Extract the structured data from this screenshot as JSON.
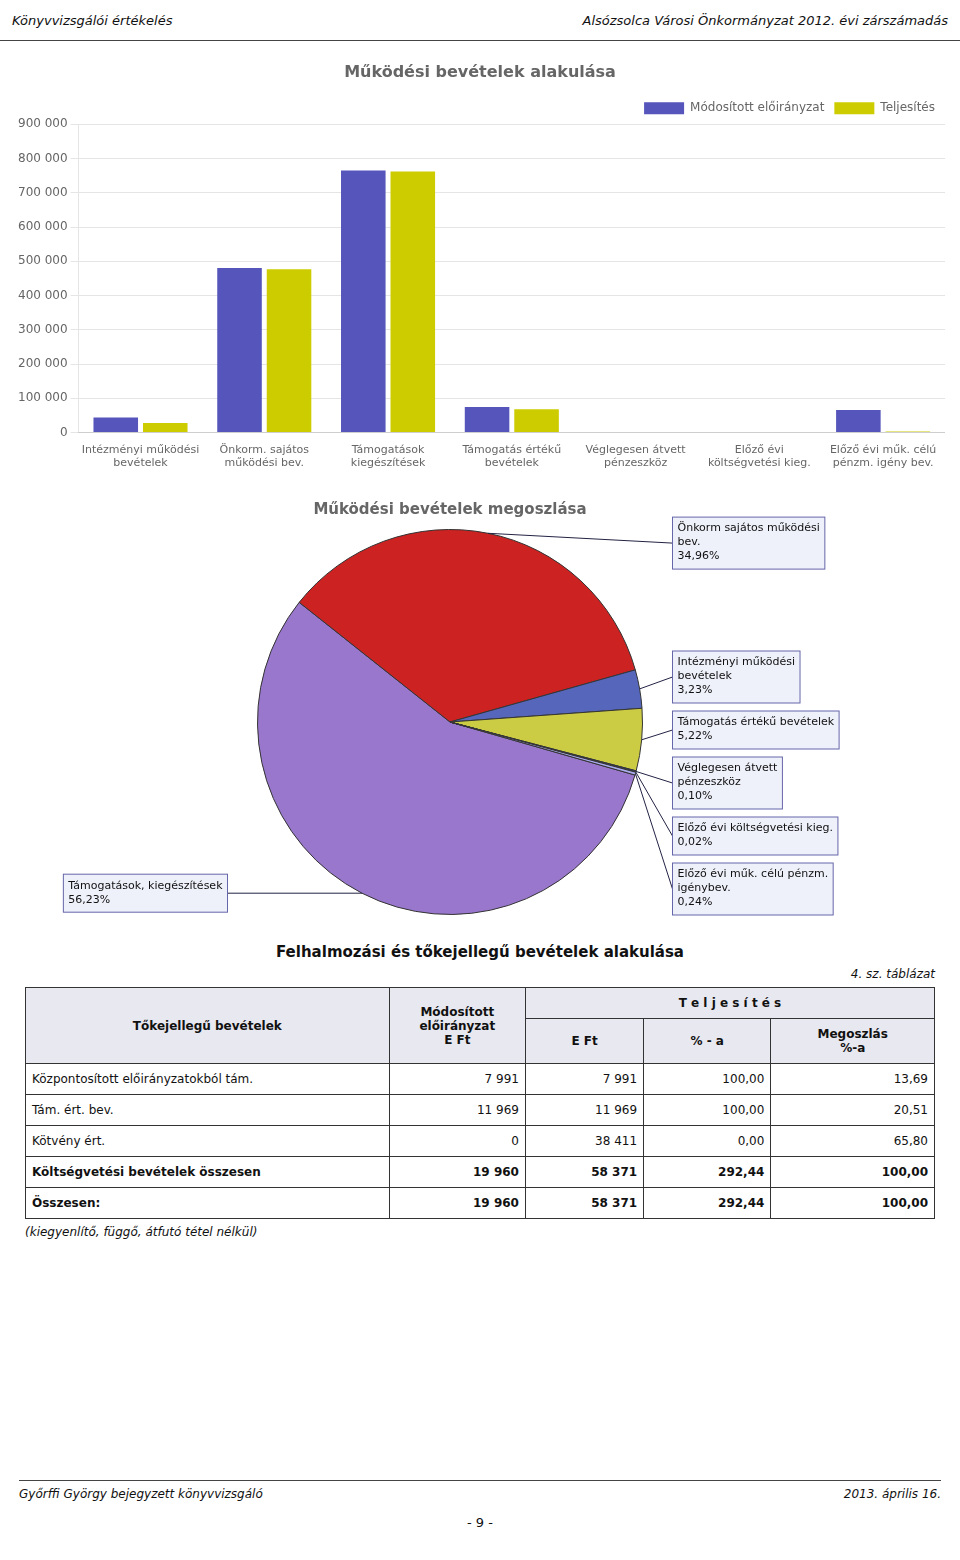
{
  "annotations": [
    "Könyvvizsgálói értékelés",
    "Alsózsolca Városi Önkormányzat 2012. évi zárszámadás",
    "Győrffi György bejegyzett könyvvizsgáló",
    "2013. április 16.",
    "- 9 -"
  ],
  "chart_data": [
    {
      "type": "bar",
      "title": "Működési bevételek alakulása",
      "categories": [
        "Intézményi működési\nbevételek",
        "Önkorm. sajátos\nműködési bev.",
        "Támogatások\nkiegészítések",
        "Támogatás értékű\nbevételek",
        "Véglegesen átvett\npénzeszköz",
        "Előző évi\nköltségvetési kieg.",
        "Előző évi műk. célú\npénzm. igény bev."
      ],
      "series": [
        {
          "name": "Módosított előirányzat",
          "color": "#5555bb",
          "values": [
            44000,
            480000,
            765000,
            75000,
            0,
            0,
            66000
          ]
        },
        {
          "name": "Teljesítés",
          "color": "#cccc00",
          "values": [
            28000,
            477000,
            762000,
            68000,
            0,
            0,
            3000
          ]
        }
      ],
      "ylim": [
        0,
        900000
      ],
      "yticks": [
        0,
        {
          "value": 100000,
          "label": "100 000"
        },
        {
          "value": 200000,
          "label": "200 000"
        },
        {
          "value": 300000,
          "label": "300 000"
        },
        {
          "value": 400000,
          "label": "400 000"
        },
        {
          "value": 500000,
          "label": "500 000"
        },
        {
          "value": 600000,
          "label": "600 000"
        },
        {
          "value": 700000,
          "label": "700 000"
        },
        {
          "value": 800000,
          "label": "800 000"
        },
        {
          "value": 900000,
          "label": "900 000"
        }
      ],
      "grid": true,
      "legend": "upper right"
    },
    {
      "type": "pie",
      "title": "Működési bevételek megoszlása",
      "categories": [
        "Támogatások, kiegészítések",
        "Önkorm sajátos működési\nbev.",
        "Intézményi működési\nbevételek",
        "Támogatás értékű bevételek",
        "Véglegesen átvett\npénzeszköz",
        "Előző évi költségvetési kieg.",
        "Előző évi műk. célú pénzm.\nigénybev."
      ],
      "values": [
        56.23,
        34.96,
        3.23,
        5.22,
        0.1,
        0.02,
        0.24
      ],
      "value_labels": [
        "56,23%",
        "34,96%",
        "3,23%",
        "5,22%",
        "0,10%",
        "0,02%",
        "0,24%"
      ],
      "colors": [
        "#9977cc",
        "#cc2222",
        "#5566bb",
        "#cccc44",
        "#4455bb",
        "#888855",
        "#aaaaee"
      ],
      "data_labels": true
    },
    {
      "type": "table",
      "title": "Felhalmozási és tőkejellegű bevételek alakulása",
      "subtitle": "4. sz. táblázat",
      "columns": [
        "Tőkejellegű bevételek",
        "Módosított\nelőirányzat\nE Ft",
        "E Ft",
        "% - a",
        "Megoszlás\n%-a"
      ],
      "group_header": "T e l j e s í t é s",
      "rows": [
        [
          "Központosított előirányzatokból tám.",
          "7 991",
          "7 991",
          "100,00",
          "13,69"
        ],
        [
          "Tám. ért. bev.",
          "11 969",
          "11 969",
          "100,00",
          "20,51"
        ],
        [
          "Kötvény ért.",
          "0",
          "38 411",
          "0,00",
          "65,80"
        ]
      ],
      "total_rows": [
        [
          "Költségvetési bevételek összesen",
          "19 960",
          "58 371",
          "292,44",
          "100,00"
        ],
        [
          "Összesen:",
          "19 960",
          "58 371",
          "292,44",
          "100,00"
        ]
      ],
      "annotations": [
        "(kiegyenlítő, függő, átfutó tétel nélkül)"
      ]
    }
  ]
}
